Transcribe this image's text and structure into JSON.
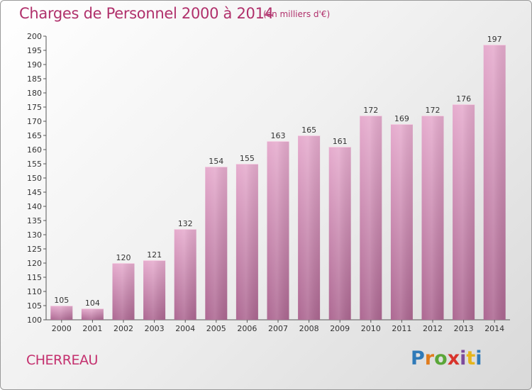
{
  "title": "Charges de Personnel 2000 à 2014",
  "subtitle": "(en milliers d'€)",
  "commune": "CHERREAU",
  "logo": [
    "P",
    "r",
    "o",
    "x",
    "i",
    "t",
    "i"
  ],
  "colors": {
    "bar": "#e2a3c7",
    "bar_dark": "#a8638d",
    "title": "#b0306b"
  },
  "chart_data": {
    "type": "bar",
    "title": "Charges de Personnel 2000 à 2014",
    "subtitle": "(en milliers d'€)",
    "categories": [
      "2000",
      "2001",
      "2002",
      "2003",
      "2004",
      "2005",
      "2006",
      "2007",
      "2008",
      "2009",
      "2010",
      "2011",
      "2012",
      "2013",
      "2014"
    ],
    "values": [
      105,
      104,
      120,
      121,
      132,
      154,
      155,
      163,
      165,
      161,
      172,
      169,
      172,
      176,
      197
    ],
    "ylim": [
      100,
      200
    ],
    "yticks": [
      100,
      105,
      110,
      115,
      120,
      125,
      130,
      135,
      140,
      145,
      150,
      155,
      160,
      165,
      170,
      175,
      180,
      185,
      190,
      195,
      200
    ],
    "grid": false,
    "legend": "none"
  }
}
